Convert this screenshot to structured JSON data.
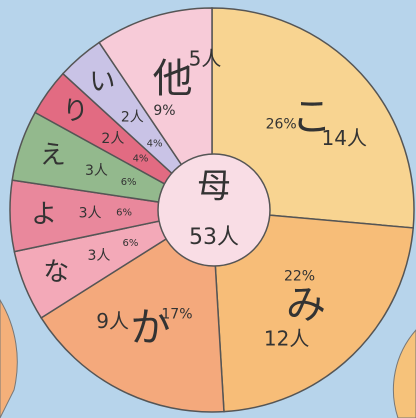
{
  "chart_data": {
    "type": "pie",
    "center_label": "母",
    "total_label": "53人",
    "categories": [
      "こ",
      "み",
      "か",
      "な",
      "よ",
      "え",
      "り",
      "い",
      "他"
    ],
    "values": [
      14,
      12,
      9,
      3,
      3,
      3,
      2,
      2,
      5
    ],
    "value_labels": [
      "14人",
      "12人",
      "9人",
      "3人",
      "3人",
      "3人",
      "2人",
      "2人",
      "5人"
    ],
    "percents": [
      26,
      22,
      17,
      6,
      6,
      6,
      4,
      4,
      9
    ],
    "percent_labels": [
      "26%",
      "22%",
      "17%",
      "6%",
      "6%",
      "6%",
      "4%",
      "4%",
      "9%"
    ],
    "colors": [
      "#f8d491",
      "#f7bd78",
      "#f4a97c",
      "#f3a9b8",
      "#e9889c",
      "#93b98d",
      "#e26b82",
      "#c9c3e6",
      "#f7cbd8"
    ]
  }
}
